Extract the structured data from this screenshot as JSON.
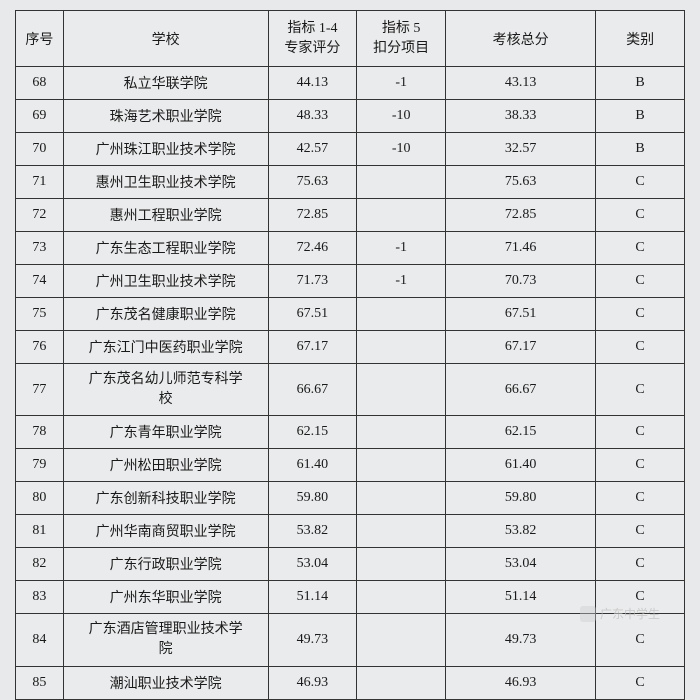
{
  "table": {
    "headers": {
      "seq": "序号",
      "school": "学校",
      "score1_line1": "指标 1-4",
      "score1_line2": "专家评分",
      "score2_line1": "指标 5",
      "score2_line2": "扣分项目",
      "total": "考核总分",
      "category": "类别"
    },
    "rows": [
      {
        "seq": "68",
        "school": "私立华联学院",
        "score1": "44.13",
        "score2": "-1",
        "total": "43.13",
        "category": "B"
      },
      {
        "seq": "69",
        "school": "珠海艺术职业学院",
        "score1": "48.33",
        "score2": "-10",
        "total": "38.33",
        "category": "B"
      },
      {
        "seq": "70",
        "school": "广州珠江职业技术学院",
        "score1": "42.57",
        "score2": "-10",
        "total": "32.57",
        "category": "B"
      },
      {
        "seq": "71",
        "school": "惠州卫生职业技术学院",
        "score1": "75.63",
        "score2": "",
        "total": "75.63",
        "category": "C"
      },
      {
        "seq": "72",
        "school": "惠州工程职业学院",
        "score1": "72.85",
        "score2": "",
        "total": "72.85",
        "category": "C"
      },
      {
        "seq": "73",
        "school": "广东生态工程职业学院",
        "score1": "72.46",
        "score2": "-1",
        "total": "71.46",
        "category": "C"
      },
      {
        "seq": "74",
        "school": "广州卫生职业技术学院",
        "score1": "71.73",
        "score2": "-1",
        "total": "70.73",
        "category": "C"
      },
      {
        "seq": "75",
        "school": "广东茂名健康职业学院",
        "score1": "67.51",
        "score2": "",
        "total": "67.51",
        "category": "C"
      },
      {
        "seq": "76",
        "school": "广东江门中医药职业学院",
        "score1": "67.17",
        "score2": "",
        "total": "67.17",
        "category": "C"
      },
      {
        "seq": "77",
        "school": "广东茂名幼儿师范专科学\n校",
        "score1": "66.67",
        "score2": "",
        "total": "66.67",
        "category": "C"
      },
      {
        "seq": "78",
        "school": "广东青年职业学院",
        "score1": "62.15",
        "score2": "",
        "total": "62.15",
        "category": "C"
      },
      {
        "seq": "79",
        "school": "广州松田职业学院",
        "score1": "61.40",
        "score2": "",
        "total": "61.40",
        "category": "C"
      },
      {
        "seq": "80",
        "school": "广东创新科技职业学院",
        "score1": "59.80",
        "score2": "",
        "total": "59.80",
        "category": "C"
      },
      {
        "seq": "81",
        "school": "广州华南商贸职业学院",
        "score1": "53.82",
        "score2": "",
        "total": "53.82",
        "category": "C"
      },
      {
        "seq": "82",
        "school": "广东行政职业学院",
        "score1": "53.04",
        "score2": "",
        "total": "53.04",
        "category": "C"
      },
      {
        "seq": "83",
        "school": "广州东华职业学院",
        "score1": "51.14",
        "score2": "",
        "total": "51.14",
        "category": "C"
      },
      {
        "seq": "84",
        "school": "广东酒店管理职业技术学\n院",
        "score1": "49.73",
        "score2": "",
        "total": "49.73",
        "category": "C"
      },
      {
        "seq": "85",
        "school": "潮汕职业技术学院",
        "score1": "46.93",
        "score2": "",
        "total": "46.93",
        "category": "C"
      }
    ]
  },
  "watermark": "广东中学生"
}
